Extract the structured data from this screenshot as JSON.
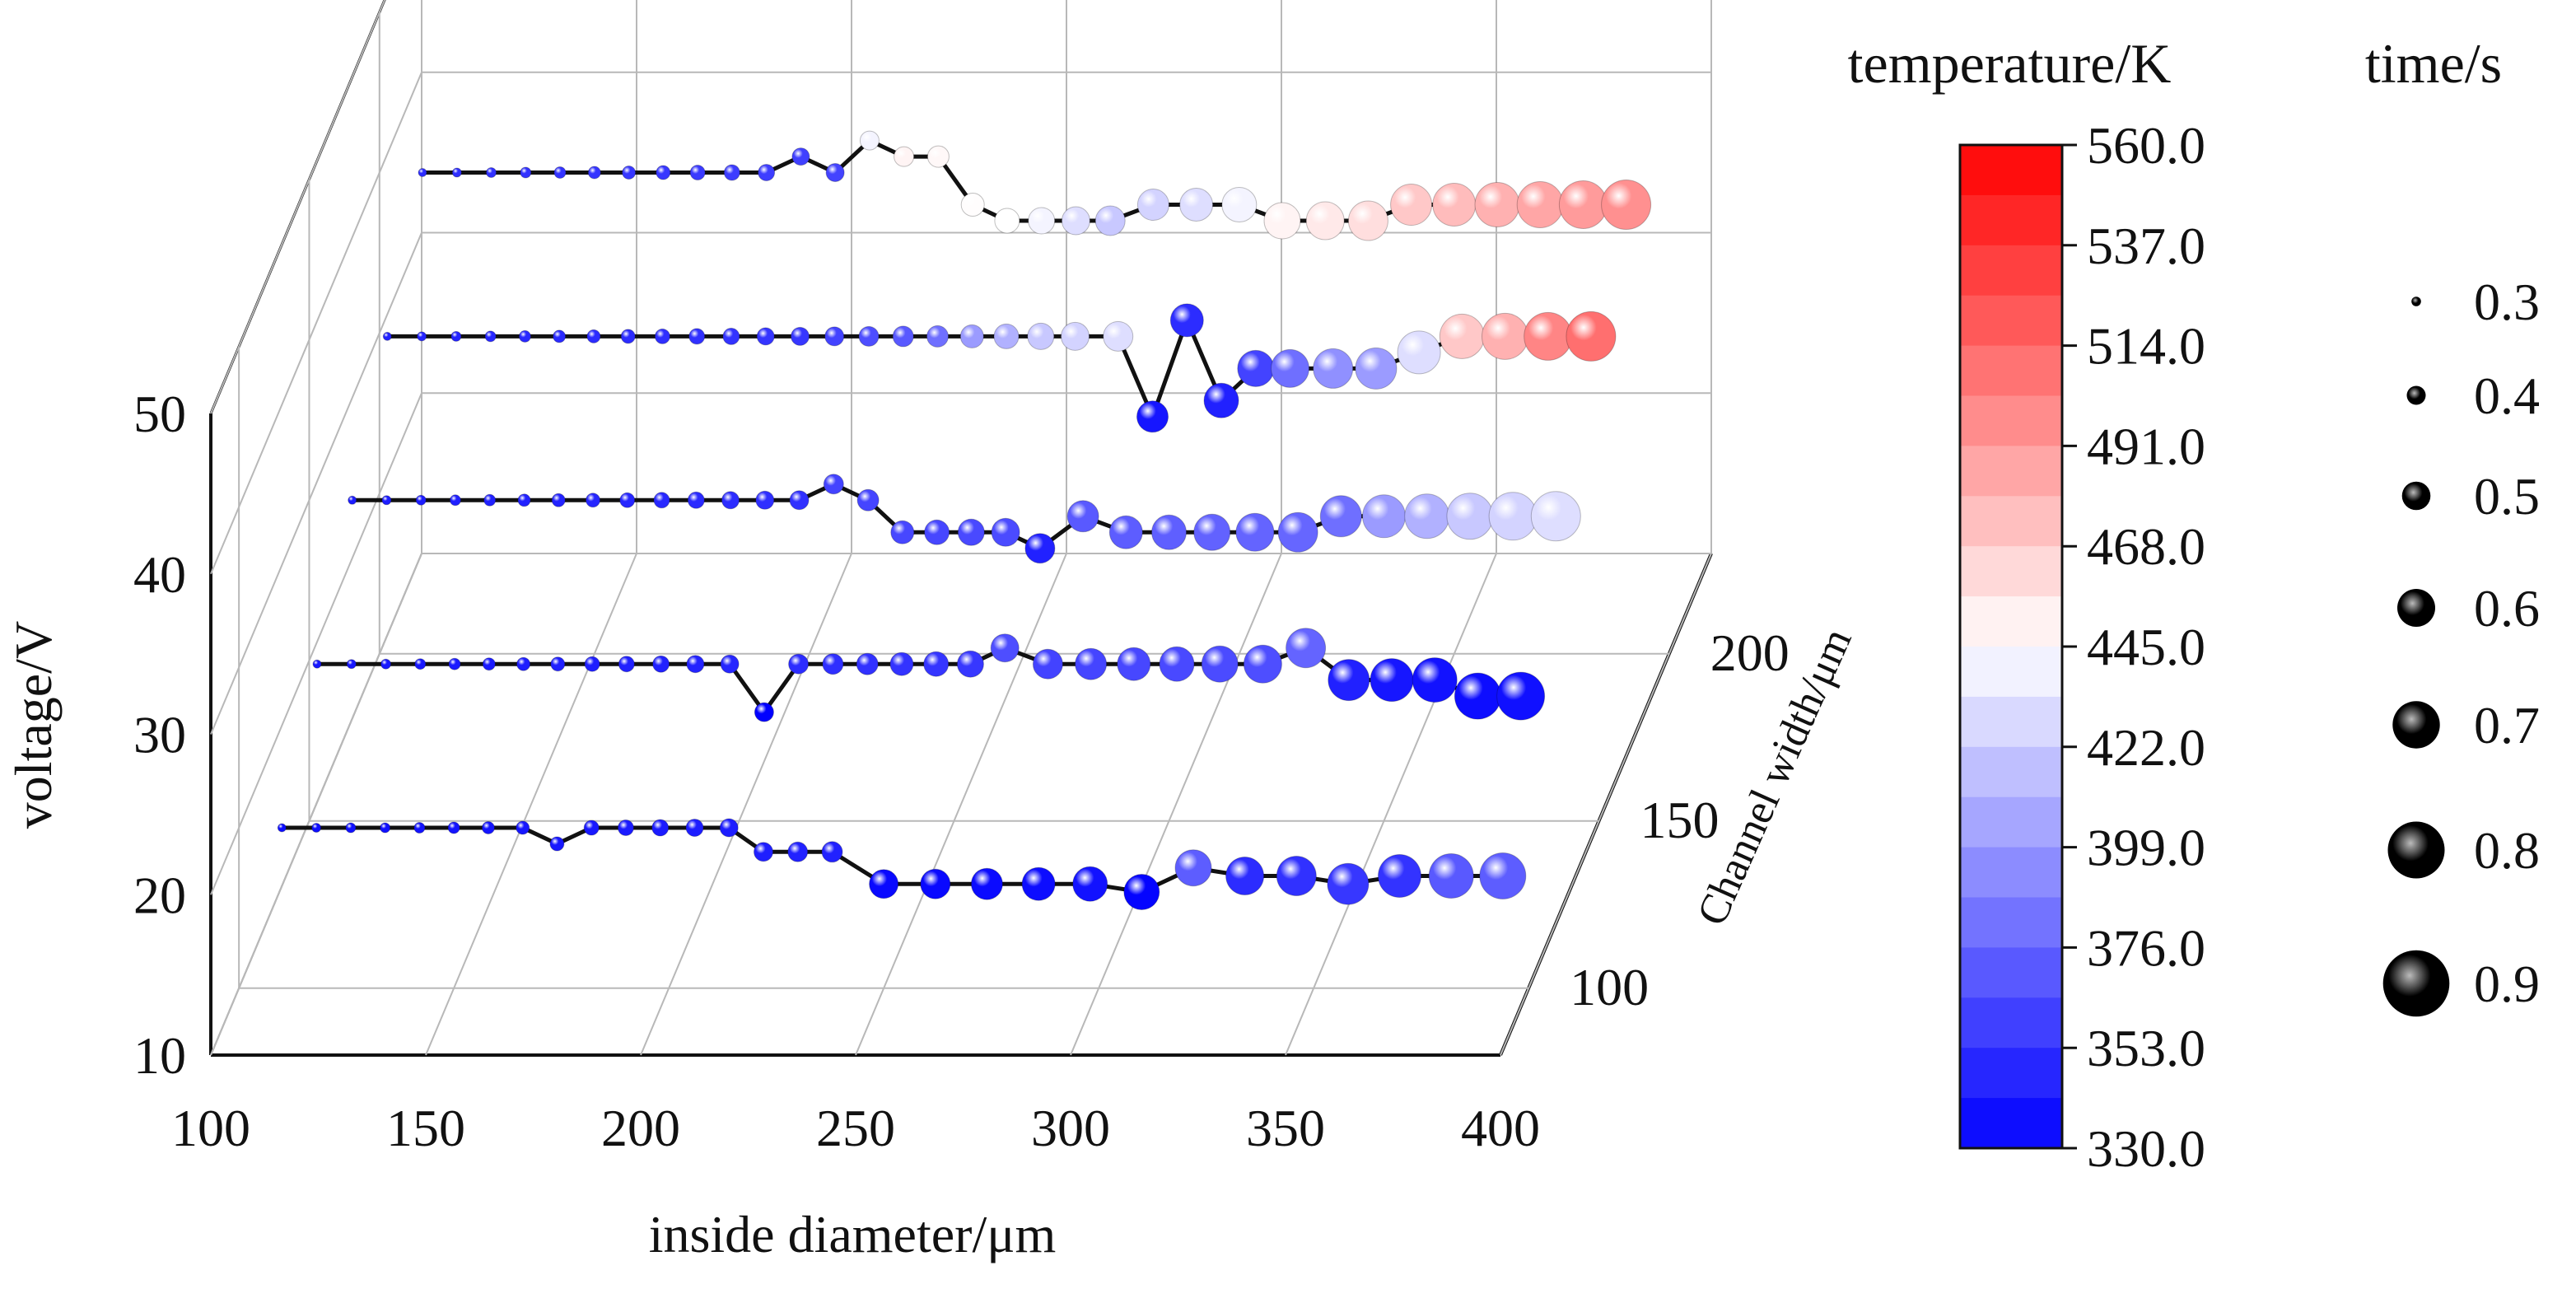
{
  "chart_data": {
    "type": "scatter",
    "subtype": "3d-bubble-line",
    "x_axis": {
      "label": "inside diameter/μm",
      "ticks": [
        "100",
        "150",
        "200",
        "250",
        "300",
        "350",
        "400"
      ],
      "range": [
        100,
        400
      ]
    },
    "y_axis": {
      "label": "Channel width/μm",
      "ticks": [
        "100",
        "150",
        "200"
      ],
      "range": [
        80,
        230
      ]
    },
    "z_axis": {
      "label": "voltage/V",
      "ticks": [
        "10",
        "20",
        "30",
        "40",
        "50"
      ],
      "range": [
        10,
        50
      ]
    },
    "colorbar": {
      "title": "temperature/K",
      "ticks": [
        "560.0",
        "537.0",
        "514.0",
        "491.0",
        "468.0",
        "445.0",
        "422.0",
        "399.0",
        "376.0",
        "353.0",
        "330.0"
      ],
      "range": [
        330,
        560
      ],
      "colors": {
        "low": "#0000ff",
        "mid": "#ffffff",
        "high": "#ff0000"
      }
    },
    "size_legend": {
      "title": "time/s",
      "entries": [
        "0.3",
        "0.4",
        "0.5",
        "0.6",
        "0.7",
        "0.8",
        "0.9"
      ]
    },
    "grid": true,
    "series": [
      {
        "y": 100,
        "z": 20,
        "x": [
          110,
          118,
          126,
          134,
          142,
          150,
          158,
          166,
          174,
          182,
          190,
          198,
          206,
          214,
          222,
          230,
          238,
          250,
          262,
          274,
          286,
          298,
          310,
          322,
          334,
          346,
          358,
          370,
          382,
          394
        ],
        "dz": [
          0,
          0,
          0,
          0,
          0,
          0,
          0,
          0,
          -1,
          0,
          0,
          0,
          0,
          0,
          -1.5,
          -1.5,
          -1.5,
          -3.5,
          -3.5,
          -3.5,
          -3.5,
          -3.5,
          -4,
          -2.5,
          -3,
          -3,
          -3.5,
          -3,
          -3,
          -3
        ],
        "temp": [
          335,
          336,
          337,
          337,
          338,
          339,
          339,
          340,
          341,
          341,
          342,
          342,
          343,
          343,
          344,
          345,
          345,
          334,
          334,
          335,
          336,
          338,
          332,
          372,
          350,
          352,
          355,
          353,
          370,
          372
        ],
        "time": [
          0.3,
          0.31,
          0.32,
          0.32,
          0.33,
          0.34,
          0.35,
          0.36,
          0.37,
          0.38,
          0.39,
          0.4,
          0.41,
          0.42,
          0.43,
          0.44,
          0.45,
          0.55,
          0.56,
          0.58,
          0.6,
          0.62,
          0.63,
          0.64,
          0.66,
          0.68,
          0.7,
          0.72,
          0.74,
          0.76
        ]
      },
      {
        "y": 125,
        "z": 25,
        "x": [
          110,
          118,
          126,
          134,
          142,
          150,
          158,
          166,
          174,
          182,
          190,
          198,
          206,
          214,
          222,
          230,
          238,
          246,
          254,
          262,
          270,
          280,
          290,
          300,
          310,
          320,
          330,
          340,
          350,
          360,
          370,
          380,
          390
        ],
        "dz": [
          0,
          0,
          0,
          0,
          0,
          0,
          0,
          0,
          0,
          0,
          0,
          0,
          0,
          -3,
          0,
          0,
          0,
          0,
          0,
          0,
          1,
          0,
          0,
          0,
          0,
          0,
          0,
          1,
          -1,
          -1,
          -1,
          -2,
          -2
        ],
        "temp": [
          340,
          340,
          341,
          341,
          342,
          342,
          343,
          344,
          344,
          345,
          345,
          346,
          347,
          330,
          350,
          351,
          352,
          353,
          354,
          355,
          365,
          360,
          361,
          362,
          363,
          364,
          365,
          375,
          345,
          340,
          338,
          336,
          337
        ],
        "time": [
          0.3,
          0.31,
          0.32,
          0.33,
          0.34,
          0.35,
          0.36,
          0.37,
          0.38,
          0.39,
          0.4,
          0.41,
          0.42,
          0.43,
          0.44,
          0.45,
          0.46,
          0.48,
          0.5,
          0.52,
          0.54,
          0.56,
          0.58,
          0.6,
          0.62,
          0.64,
          0.66,
          0.68,
          0.7,
          0.72,
          0.74,
          0.76,
          0.78
        ]
      },
      {
        "y": 150,
        "z": 30,
        "x": [
          110,
          118,
          126,
          134,
          142,
          150,
          158,
          166,
          174,
          182,
          190,
          198,
          206,
          214,
          222,
          230,
          238,
          246,
          254,
          262,
          270,
          280,
          290,
          300,
          310,
          320,
          330,
          340,
          350,
          360,
          370,
          380,
          390
        ],
        "dz": [
          0,
          0,
          0,
          0,
          0,
          0,
          0,
          0,
          0,
          0,
          0,
          0,
          0,
          0,
          1,
          0,
          -2,
          -2,
          -2,
          -2,
          -3,
          -1,
          -2,
          -2,
          -2,
          -2,
          -2,
          -1,
          -1,
          -1,
          -1,
          -1,
          -1
        ],
        "temp": [
          342,
          343,
          343,
          344,
          345,
          345,
          346,
          347,
          347,
          348,
          349,
          350,
          351,
          352,
          360,
          361,
          362,
          362,
          363,
          364,
          345,
          370,
          372,
          373,
          374,
          375,
          376,
          380,
          400,
          410,
          420,
          425,
          430
        ],
        "time": [
          0.3,
          0.31,
          0.32,
          0.33,
          0.34,
          0.35,
          0.36,
          0.37,
          0.38,
          0.39,
          0.4,
          0.41,
          0.42,
          0.43,
          0.44,
          0.46,
          0.48,
          0.5,
          0.52,
          0.54,
          0.56,
          0.58,
          0.6,
          0.62,
          0.64,
          0.66,
          0.68,
          0.7,
          0.72,
          0.74,
          0.76,
          0.78,
          0.8
        ]
      },
      {
        "y": 175,
        "z": 35,
        "x": [
          110,
          118,
          126,
          134,
          142,
          150,
          158,
          166,
          174,
          182,
          190,
          198,
          206,
          214,
          222,
          230,
          238,
          246,
          254,
          262,
          270,
          280,
          288,
          296,
          304,
          312,
          320,
          330,
          340,
          350,
          360,
          370,
          380,
          390
        ],
        "dz": [
          0,
          0,
          0,
          0,
          0,
          0,
          0,
          0,
          0,
          0,
          0,
          0,
          0,
          0,
          0,
          0,
          0,
          0,
          0,
          0,
          0,
          0,
          -5,
          1,
          -4,
          -2,
          -2,
          -2,
          -2,
          -1,
          0,
          0,
          0,
          0
        ],
        "temp": [
          345,
          346,
          346,
          347,
          348,
          349,
          350,
          350,
          351,
          352,
          353,
          354,
          355,
          360,
          365,
          370,
          380,
          400,
          410,
          420,
          425,
          430,
          340,
          350,
          345,
          360,
          380,
          395,
          400,
          430,
          470,
          480,
          500,
          510
        ],
        "time": [
          0.3,
          0.31,
          0.32,
          0.33,
          0.34,
          0.35,
          0.36,
          0.37,
          0.38,
          0.39,
          0.4,
          0.41,
          0.42,
          0.43,
          0.44,
          0.45,
          0.46,
          0.48,
          0.5,
          0.52,
          0.54,
          0.56,
          0.58,
          0.6,
          0.62,
          0.64,
          0.66,
          0.68,
          0.7,
          0.72,
          0.74,
          0.76,
          0.78,
          0.8
        ]
      },
      {
        "y": 200,
        "z": 40,
        "x": [
          110,
          118,
          126,
          134,
          142,
          150,
          158,
          166,
          174,
          182,
          190,
          198,
          206,
          214,
          222,
          230,
          238,
          246,
          254,
          262,
          270,
          280,
          290,
          300,
          310,
          320,
          330,
          340,
          350,
          360,
          370,
          380,
          390
        ],
        "dz": [
          0,
          0,
          0,
          0,
          0,
          0,
          0,
          0,
          0,
          0,
          0,
          1,
          0,
          2,
          1,
          1,
          -2,
          -3,
          -3,
          -3,
          -3,
          -2,
          -2,
          -2,
          -3,
          -3,
          -3,
          -2,
          -2,
          -2,
          -2,
          -2,
          -2
        ],
        "temp": [
          350,
          351,
          352,
          352,
          353,
          354,
          355,
          355,
          356,
          357,
          358,
          359,
          360,
          440,
          450,
          448,
          446,
          445,
          440,
          430,
          420,
          425,
          430,
          440,
          450,
          455,
          460,
          470,
          475,
          480,
          485,
          490,
          495
        ],
        "time": [
          0.3,
          0.31,
          0.32,
          0.33,
          0.34,
          0.35,
          0.36,
          0.37,
          0.38,
          0.39,
          0.4,
          0.41,
          0.42,
          0.43,
          0.44,
          0.46,
          0.48,
          0.5,
          0.52,
          0.54,
          0.56,
          0.58,
          0.6,
          0.62,
          0.64,
          0.66,
          0.68,
          0.7,
          0.72,
          0.74,
          0.76,
          0.78,
          0.8
        ]
      }
    ]
  }
}
